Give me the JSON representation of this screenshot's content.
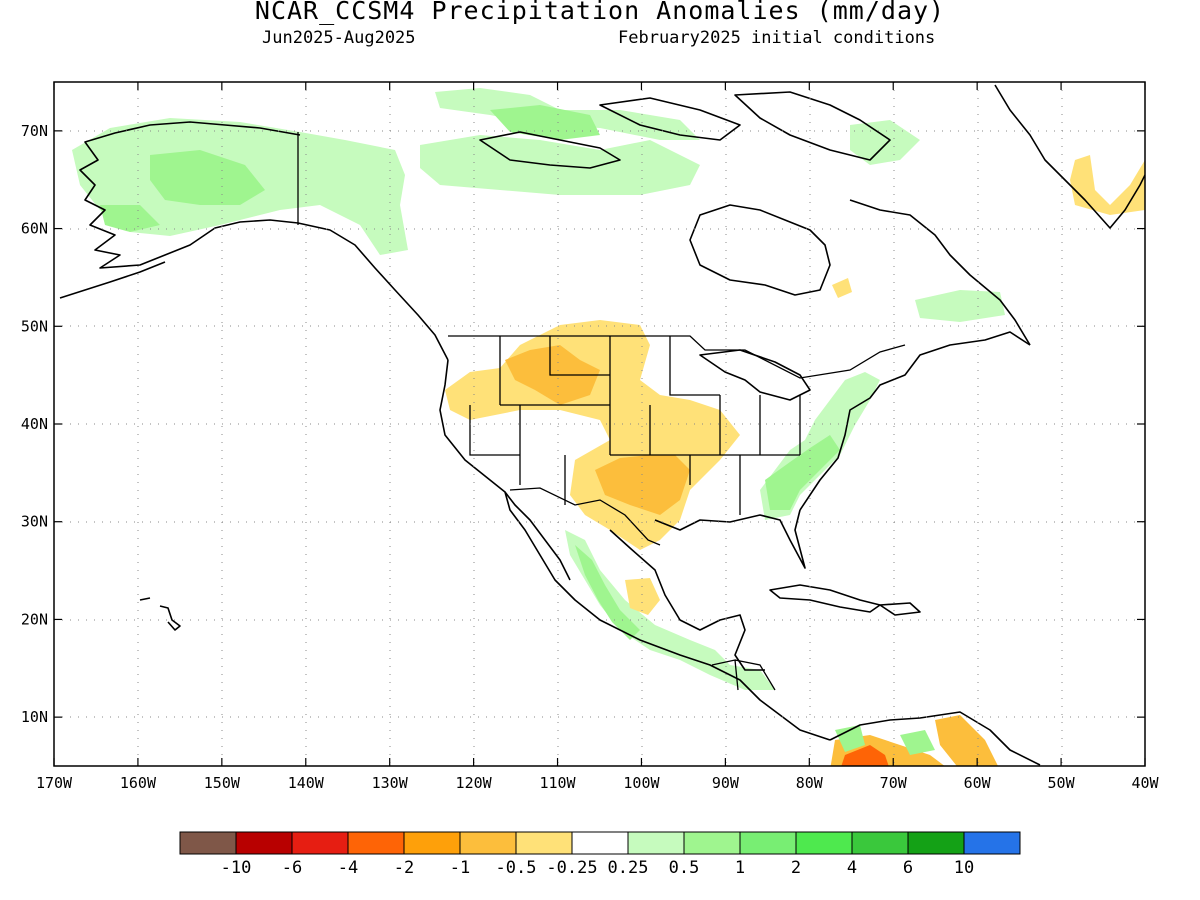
{
  "title": "NCAR_CCSM4 Precipitation Anomalies (mm/day)",
  "subtitle_left": "Jun2025-Aug2025",
  "subtitle_right": "February2025 initial conditions",
  "lon_labels": [
    "170W",
    "160W",
    "150W",
    "140W",
    "130W",
    "120W",
    "110W",
    "100W",
    "90W",
    "80W",
    "70W",
    "60W",
    "50W",
    "40W"
  ],
  "lat_labels": [
    "70N",
    "60N",
    "50N",
    "40N",
    "30N",
    "20N",
    "10N"
  ],
  "colorbar": {
    "colors": [
      "#7f5748",
      "#b80000",
      "#e61e12",
      "#fe6406",
      "#fea00a",
      "#fcbe3c",
      "#ffe178",
      "#ffffff",
      "#c6fbbe",
      "#9ff58f",
      "#78ee73",
      "#4ee94e",
      "#3ac83c",
      "#14a116",
      "#2573e8"
    ],
    "labels": [
      "-10",
      "-6",
      "-4",
      "-2",
      "-1",
      "-0.5",
      "-0.25",
      "0.25",
      "0.5",
      "1",
      "2",
      "4",
      "6",
      "10"
    ]
  },
  "map": {
    "projection": "cylindrical",
    "lon_range": [
      -170,
      -40
    ],
    "lat_range": [
      5,
      75
    ],
    "grid": "dotted"
  }
}
